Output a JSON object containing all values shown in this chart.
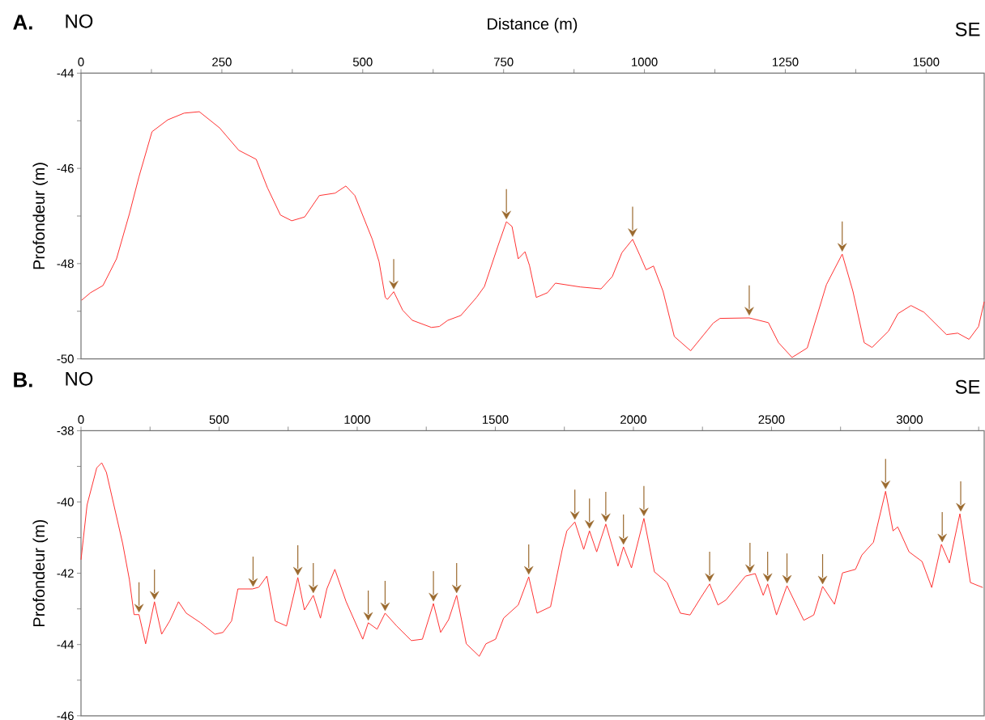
{
  "chart_data": [
    {
      "type": "line",
      "title": "A.",
      "xlabel": "Distance (m)",
      "ylabel": "Profondeur (m)",
      "annotations": [
        "NO",
        "SE"
      ],
      "xlim": [
        0,
        1603
      ],
      "ylim": [
        -50,
        -44
      ],
      "xticks": [
        0,
        {
          "value": 125,
          "label": null
        },
        250,
        {
          "value": 375,
          "label": null
        },
        500,
        {
          "value": 625,
          "label": null
        },
        750,
        {
          "value": 875,
          "label": null
        },
        1000,
        {
          "value": 1125,
          "label": null
        },
        1250,
        {
          "value": 1375,
          "label": null
        },
        1500
      ],
      "yticks": [
        -44,
        {
          "value": -45,
          "label": null
        },
        -46,
        {
          "value": -47,
          "label": null
        },
        -48,
        {
          "value": -49,
          "label": null
        },
        -50
      ],
      "series": [
        {
          "color": "#ff3333",
          "x": [
            1,
            17,
            39,
            63,
            86,
            103,
            126,
            154,
            183,
            210,
            246,
            280,
            311,
            331,
            354,
            374,
            397,
            423,
            451,
            470,
            486,
            517,
            529,
            540,
            544,
            555,
            571,
            588,
            622,
            636,
            651,
            674,
            702,
            716,
            740,
            755,
            765,
            776,
            788,
            796,
            808,
            828,
            842,
            886,
            923,
            943,
            960,
            979,
            992,
            1003,
            1016,
            1033,
            1053,
            1082,
            1122,
            1134,
            1186,
            1220,
            1238,
            1262,
            1289,
            1323,
            1351,
            1370,
            1390,
            1404,
            1433,
            1450,
            1473,
            1496,
            1536,
            1556,
            1576,
            1593,
            1603
          ],
          "values": [
            -48.77,
            -48.61,
            -48.46,
            -47.9,
            -46.95,
            -46.17,
            -45.23,
            -44.98,
            -44.84,
            -44.81,
            -45.15,
            -45.62,
            -45.81,
            -46.41,
            -46.98,
            -47.1,
            -47.02,
            -46.57,
            -46.52,
            -46.37,
            -46.57,
            -47.49,
            -47.96,
            -48.71,
            -48.75,
            -48.59,
            -48.98,
            -49.19,
            -49.34,
            -49.32,
            -49.19,
            -49.09,
            -48.71,
            -48.48,
            -47.63,
            -47.12,
            -47.22,
            -47.9,
            -47.75,
            -48.04,
            -48.71,
            -48.61,
            -48.41,
            -48.49,
            -48.53,
            -48.27,
            -47.77,
            -47.49,
            -47.83,
            -48.13,
            -48.05,
            -48.58,
            -49.53,
            -49.83,
            -49.25,
            -49.15,
            -49.14,
            -49.24,
            -49.66,
            -49.97,
            -49.77,
            -48.44,
            -47.8,
            -48.58,
            -49.66,
            -49.76,
            -49.42,
            -49.05,
            -48.88,
            -49.02,
            -49.49,
            -49.46,
            -49.59,
            -49.32,
            -48.8
          ]
        },
        {
          "type": "scatter",
          "color": "#9b6a2f",
          "x": [
            555,
            755,
            979,
            1186,
            1351
          ],
          "values": [
            -48.45,
            -46.98,
            -47.35,
            -49.0,
            -47.66
          ]
        }
      ]
    },
    {
      "type": "line",
      "title": "B.",
      "ylabel": "Profondeur (m)",
      "annotations": [
        "NO",
        "SE"
      ],
      "xlim": [
        0,
        3270
      ],
      "ylim": [
        -46,
        -38
      ],
      "xticks": [
        0,
        {
          "value": 250,
          "label": null
        },
        500,
        {
          "value": 750,
          "label": null
        },
        1000,
        {
          "value": 1250,
          "label": null
        },
        1500,
        {
          "value": 1750,
          "label": null
        },
        2000,
        {
          "value": 2250,
          "label": null
        },
        2500,
        {
          "value": 2750,
          "label": null
        },
        3000,
        {
          "value": 3250,
          "label": null
        }
      ],
      "yticks": [
        -38,
        {
          "value": -39,
          "label": null
        },
        -40,
        {
          "value": -41,
          "label": null
        },
        -42,
        {
          "value": -43,
          "label": null
        },
        -44,
        {
          "value": -45,
          "label": null
        },
        -46
      ],
      "series": [
        {
          "color": "#ff3333",
          "x": [
            0,
            22,
            57,
            75,
            92,
            151,
            175,
            192,
            210,
            234,
            266,
            292,
            321,
            353,
            381,
            433,
            485,
            514,
            545,
            568,
            621,
            644,
            673,
            703,
            744,
            785,
            809,
            841,
            867,
            890,
            919,
            960,
            1020,
            1040,
            1072,
            1101,
            1143,
            1196,
            1236,
            1276,
            1302,
            1331,
            1360,
            1395,
            1442,
            1466,
            1501,
            1530,
            1583,
            1621,
            1651,
            1700,
            1742,
            1759,
            1788,
            1820,
            1841,
            1867,
            1900,
            1944,
            1964,
            1993,
            2038,
            2076,
            2122,
            2170,
            2205,
            2245,
            2276,
            2306,
            2335,
            2406,
            2441,
            2470,
            2486,
            2518,
            2556,
            2617,
            2653,
            2685,
            2728,
            2757,
            2804,
            2827,
            2869,
            2913,
            2940,
            2957,
            2998,
            3045,
            3080,
            3115,
            3144,
            3182,
            3220,
            3265
          ],
          "values": [
            -41.62,
            -40.08,
            -39.04,
            -38.9,
            -39.17,
            -41.17,
            -42.17,
            -43.16,
            -43.16,
            -43.98,
            -42.8,
            -43.71,
            -43.34,
            -42.8,
            -43.12,
            -43.39,
            -43.71,
            -43.66,
            -43.34,
            -42.44,
            -42.44,
            -42.39,
            -42.08,
            -43.34,
            -43.48,
            -42.12,
            -43.03,
            -42.62,
            -43.26,
            -42.44,
            -41.89,
            -42.8,
            -43.85,
            -43.39,
            -43.57,
            -43.12,
            -43.48,
            -43.89,
            -43.85,
            -42.85,
            -43.66,
            -43.3,
            -42.62,
            -43.98,
            -44.33,
            -43.98,
            -43.85,
            -43.26,
            -42.89,
            -42.1,
            -43.12,
            -42.94,
            -41.35,
            -40.81,
            -40.56,
            -41.33,
            -40.81,
            -41.4,
            -40.62,
            -41.8,
            -41.26,
            -41.85,
            -40.46,
            -41.96,
            -42.26,
            -43.12,
            -43.17,
            -42.67,
            -42.3,
            -42.89,
            -42.75,
            -42.08,
            -42.01,
            -42.62,
            -42.3,
            -43.17,
            -42.35,
            -43.32,
            -43.17,
            -42.37,
            -42.87,
            -41.99,
            -41.89,
            -41.49,
            -41.13,
            -39.7,
            -40.81,
            -40.7,
            -41.4,
            -41.67,
            -42.4,
            -41.19,
            -41.71,
            -40.33,
            -42.26,
            -42.4
          ]
        },
        {
          "type": "scatter",
          "color": "#9b6a2f",
          "x": [
            210,
            266,
            623,
            785,
            841,
            1040,
            1101,
            1276,
            1360,
            1621,
            1788,
            1841,
            1900,
            1964,
            2038,
            2276,
            2422,
            2486,
            2556,
            2685,
            2913,
            3118,
            3185
          ],
          "values": [
            -42.98,
            -42.62,
            -42.26,
            -41.94,
            -42.44,
            -43.21,
            -42.94,
            -42.67,
            -42.44,
            -41.92,
            -40.38,
            -40.63,
            -40.44,
            -41.08,
            -40.28,
            -42.12,
            -41.87,
            -42.12,
            -42.17,
            -42.19,
            -39.52,
            -41.01,
            -40.15
          ]
        }
      ]
    }
  ]
}
